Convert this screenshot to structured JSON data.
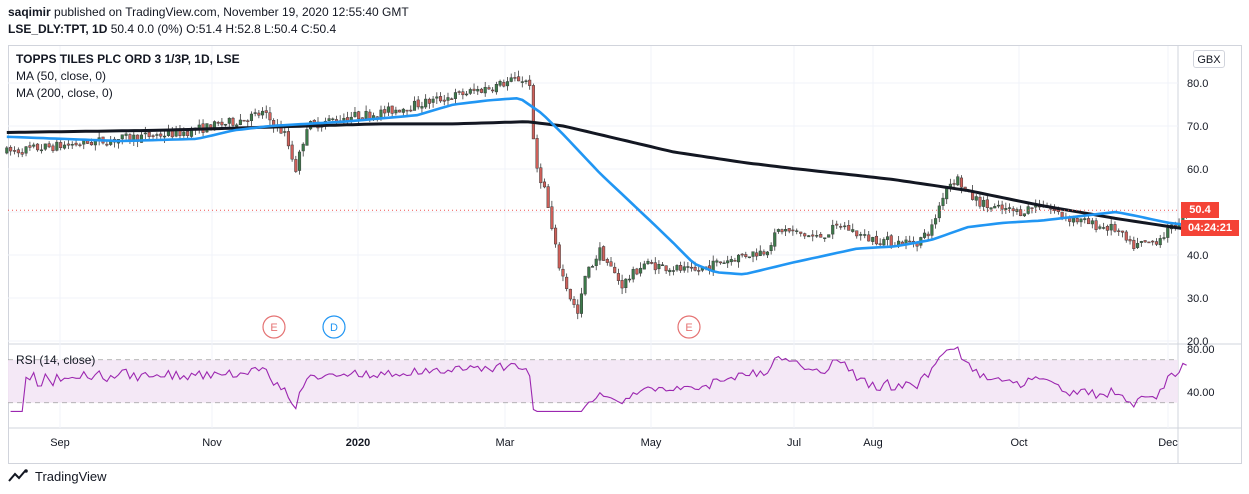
{
  "header": {
    "publisher": "saqimir",
    "publish_text": "published on TradingView.com, November 19, 2020 12:55:40 GMT",
    "symbol": "LSE_DLY:TPT, 1D",
    "ohlc": "50.4 0.0 (0%) O:51.4 H:52.8 L:50.4 C:50.4"
  },
  "chart_data": {
    "type": "candlestick",
    "title": "TOPPS TILES PLC ORD 3 1/3P, 1D, LSE",
    "currency": "GBX",
    "indicators": [
      "MA (50, close, 0)",
      "MA (200, close, 0)"
    ],
    "last_price": "50.4",
    "countdown": "04:24:21",
    "y_ticks": [
      "80.0",
      "70.0",
      "60.0",
      "50.0",
      "40.0",
      "30.0",
      "20.0"
    ],
    "ylim": [
      20,
      82
    ],
    "x_labels": [
      "Sep",
      "Nov",
      "2020",
      "Mar",
      "May",
      "Jul",
      "Aug",
      "Oct",
      "Dec"
    ],
    "events": [
      {
        "label": "E",
        "month": "Nov",
        "color": "#e57373"
      },
      {
        "label": "D",
        "month": "Dec",
        "color": "#2196f3"
      },
      {
        "label": "E",
        "month": "May",
        "color": "#e57373"
      }
    ],
    "anchors": [
      {
        "m": 0,
        "v": 64
      },
      {
        "m": 1.5,
        "v": 67
      },
      {
        "m": 2.3,
        "v": 68.5
      },
      {
        "m": 3.0,
        "v": 71
      },
      {
        "m": 3.4,
        "v": 73
      },
      {
        "m": 3.7,
        "v": 68
      },
      {
        "m": 3.85,
        "v": 60
      },
      {
        "m": 4.0,
        "v": 70
      },
      {
        "m": 4.5,
        "v": 72
      },
      {
        "m": 5.0,
        "v": 73
      },
      {
        "m": 5.5,
        "v": 75
      },
      {
        "m": 6.0,
        "v": 77
      },
      {
        "m": 6.5,
        "v": 79
      },
      {
        "m": 6.9,
        "v": 81
      },
      {
        "m": 7.05,
        "v": 80
      },
      {
        "m": 7.1,
        "v": 62
      },
      {
        "m": 7.25,
        "v": 55
      },
      {
        "m": 7.35,
        "v": 45
      },
      {
        "m": 7.45,
        "v": 37
      },
      {
        "m": 7.6,
        "v": 30
      },
      {
        "m": 7.7,
        "v": 26
      },
      {
        "m": 7.8,
        "v": 35
      },
      {
        "m": 8.0,
        "v": 41
      },
      {
        "m": 8.3,
        "v": 33
      },
      {
        "m": 8.6,
        "v": 38
      },
      {
        "m": 9.0,
        "v": 37
      },
      {
        "m": 9.3,
        "v": 36
      },
      {
        "m": 9.6,
        "v": 38
      },
      {
        "m": 10.0,
        "v": 40
      },
      {
        "m": 10.3,
        "v": 41
      },
      {
        "m": 10.5,
        "v": 46
      },
      {
        "m": 11.0,
        "v": 44
      },
      {
        "m": 11.3,
        "v": 47
      },
      {
        "m": 11.6,
        "v": 44
      },
      {
        "m": 12.0,
        "v": 43
      },
      {
        "m": 12.3,
        "v": 43
      },
      {
        "m": 12.5,
        "v": 46
      },
      {
        "m": 12.7,
        "v": 56
      },
      {
        "m": 12.85,
        "v": 58
      },
      {
        "m": 13.0,
        "v": 54
      },
      {
        "m": 13.3,
        "v": 51
      },
      {
        "m": 13.7,
        "v": 50
      },
      {
        "m": 14.0,
        "v": 52
      },
      {
        "m": 14.3,
        "v": 49
      },
      {
        "m": 14.7,
        "v": 47
      },
      {
        "m": 15.0,
        "v": 46
      },
      {
        "m": 15.2,
        "v": 42
      },
      {
        "m": 15.5,
        "v": 43
      },
      {
        "m": 15.75,
        "v": 46
      },
      {
        "m": 15.95,
        "v": 50.4
      }
    ],
    "ma50": [
      {
        "m": 0,
        "v": 67.5
      },
      {
        "m": 1.5,
        "v": 66.5
      },
      {
        "m": 2.5,
        "v": 67
      },
      {
        "m": 3.0,
        "v": 69
      },
      {
        "m": 3.5,
        "v": 70
      },
      {
        "m": 4.5,
        "v": 71
      },
      {
        "m": 5.5,
        "v": 72.5
      },
      {
        "m": 6.0,
        "v": 75
      },
      {
        "m": 6.5,
        "v": 76
      },
      {
        "m": 6.9,
        "v": 76.5
      },
      {
        "m": 7.2,
        "v": 73
      },
      {
        "m": 7.5,
        "v": 68
      },
      {
        "m": 8.0,
        "v": 59
      },
      {
        "m": 8.5,
        "v": 51
      },
      {
        "m": 9.0,
        "v": 43
      },
      {
        "m": 9.3,
        "v": 38
      },
      {
        "m": 9.6,
        "v": 36
      },
      {
        "m": 10.0,
        "v": 35.5
      },
      {
        "m": 10.5,
        "v": 37.5
      },
      {
        "m": 11.0,
        "v": 39.5
      },
      {
        "m": 11.5,
        "v": 41.5
      },
      {
        "m": 12.0,
        "v": 42
      },
      {
        "m": 12.5,
        "v": 43.5
      },
      {
        "m": 13.0,
        "v": 46.5
      },
      {
        "m": 13.5,
        "v": 47.5
      },
      {
        "m": 14.0,
        "v": 48
      },
      {
        "m": 14.5,
        "v": 49
      },
      {
        "m": 15.0,
        "v": 50
      },
      {
        "m": 15.3,
        "v": 49
      },
      {
        "m": 15.7,
        "v": 47.5
      },
      {
        "m": 15.95,
        "v": 47
      }
    ],
    "ma200": [
      {
        "m": 0,
        "v": 68.5
      },
      {
        "m": 2,
        "v": 69
      },
      {
        "m": 4,
        "v": 70
      },
      {
        "m": 5,
        "v": 70.5
      },
      {
        "m": 6,
        "v": 70.5
      },
      {
        "m": 7,
        "v": 71
      },
      {
        "m": 7.5,
        "v": 70
      },
      {
        "m": 8,
        "v": 68
      },
      {
        "m": 9,
        "v": 64
      },
      {
        "m": 10,
        "v": 61.5
      },
      {
        "m": 11,
        "v": 59.5
      },
      {
        "m": 12,
        "v": 57.5
      },
      {
        "m": 13,
        "v": 55
      },
      {
        "m": 14,
        "v": 51.5
      },
      {
        "m": 15,
        "v": 48.5
      },
      {
        "m": 15.95,
        "v": 46
      }
    ],
    "rsi": {
      "label": "RSI (14, close)",
      "y_ticks": [
        "80.00",
        "40.00"
      ],
      "ylim": [
        28,
        80
      ],
      "band": [
        70,
        30
      ]
    }
  },
  "footer": {
    "logo_label": "TradingView"
  }
}
